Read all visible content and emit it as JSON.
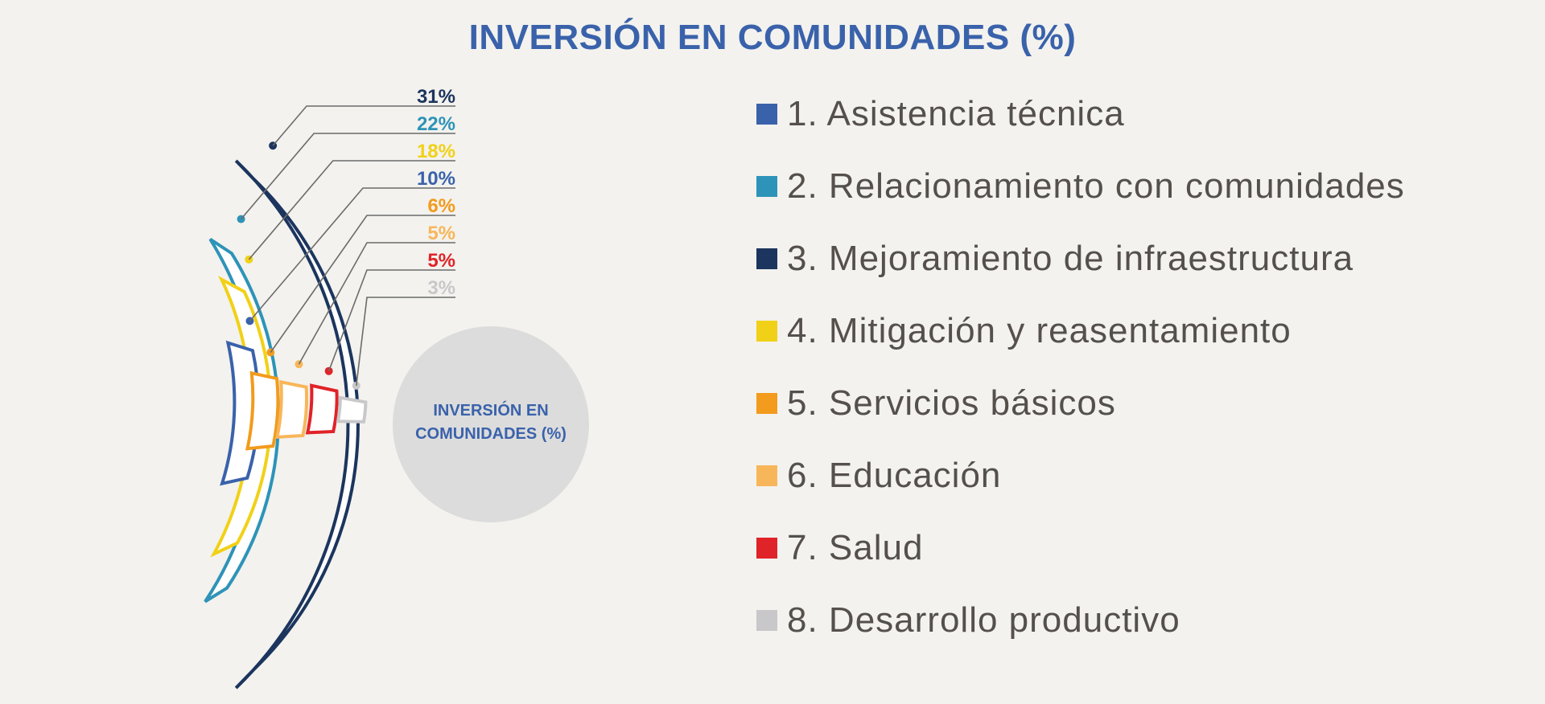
{
  "title": "INVERSIÓN EN COMUNIDADES (%)",
  "chart_data": {
    "type": "radial-bar",
    "title": "INVERSIÓN EN COMUNIDADES (%)",
    "center_label": [
      "INVERSIÓN EN",
      "COMUNIDADES (%)"
    ],
    "unit": "%",
    "categories": [
      "3. Mejoramiento de infraestructura",
      "2. Relacionamiento con comunidades",
      "4. Mitigación y reasentamiento",
      "1. Asistencia técnica",
      "5. Servicios básicos",
      "6. Educación",
      "7. Salud",
      "8. Desarrollo productivo"
    ],
    "values": [
      31,
      22,
      18,
      10,
      6,
      5,
      5,
      3
    ],
    "value_labels": [
      "31%",
      "22%",
      "18%",
      "10%",
      "6%",
      "5%",
      "5%",
      "3%"
    ],
    "colors": [
      "#1c355e",
      "#2e93b8",
      "#f1d117",
      "#3a62ab",
      "#f29b1d",
      "#f8b65a",
      "#e02328",
      "#c8c8ca"
    ]
  },
  "legend": [
    {
      "label": "1. Asistencia técnica",
      "color": "#3a62ab"
    },
    {
      "label": "2. Relacionamiento con comunidades",
      "color": "#2e93b8"
    },
    {
      "label": "3. Mejoramiento de infraestructura",
      "color": "#1c355e"
    },
    {
      "label": "4. Mitigación y reasentamiento",
      "color": "#f1d117"
    },
    {
      "label": "5. Servicios básicos",
      "color": "#f29b1d"
    },
    {
      "label": "6. Educación",
      "color": "#f8b65a"
    },
    {
      "label": "7. Salud",
      "color": "#e02328"
    },
    {
      "label": "8. Desarrollo productivo",
      "color": "#c8c8ca"
    }
  ]
}
